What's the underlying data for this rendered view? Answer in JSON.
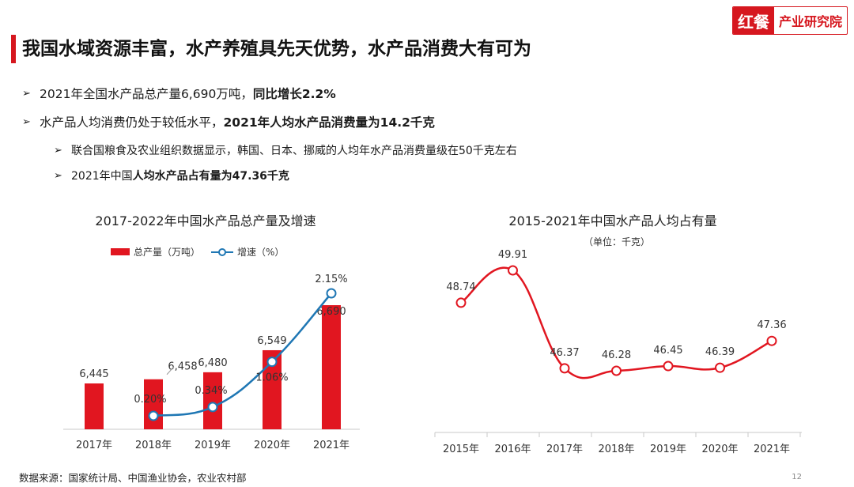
{
  "header": {
    "logo_mark": "红餐",
    "logo_text": "产业研究院",
    "title": "我国水域资源丰富，水产养殖具先天优势，水产品消费大有可为"
  },
  "bullets": [
    {
      "level": 1,
      "normal": "2021年全国水产品总产量6,690万吨，",
      "bold": "同比增长2.2%"
    },
    {
      "level": 1,
      "normal": "水产品人均消费仍处于较低水平，",
      "bold": "2021年人均水产品消费量为14.2千克"
    },
    {
      "level": 2,
      "normal": "联合国粮食及农业组织数据显示，韩国、日本、挪威的人均年水产品消费量级在50千克左右",
      "bold": ""
    },
    {
      "level": 2,
      "normal": "2021年中国",
      "bold": "人均水产品占有量为47.36千克"
    }
  ],
  "footer": {
    "source": "数据来源：国家统计局、中国渔业协会，农业农村部",
    "page": "12"
  },
  "colors": {
    "accent": "#d6171f",
    "bar": "#e11620",
    "line": "#1f77b4",
    "line2": "#e11620"
  },
  "chart_data": [
    {
      "type": "bar",
      "title": "2017-2022年中国水产品总产量及增速",
      "categories": [
        "2017年",
        "2018年",
        "2019年",
        "2020年",
        "2021年"
      ],
      "legend": {
        "placement": "top",
        "bar_label": "总产量（万吨）",
        "line_label": "增速（%）"
      },
      "series": [
        {
          "name": "总产量（万吨）",
          "type": "bar",
          "values": [
            6445,
            6458,
            6480,
            6549,
            6690
          ],
          "labels": [
            "6,445",
            "6,458",
            "6,480",
            "6,549",
            "6,690"
          ]
        },
        {
          "name": "增速（%）",
          "type": "line",
          "values": [
            null,
            0.2,
            0.34,
            1.06,
            2.15
          ],
          "labels": [
            "",
            "0.20%",
            "0.34%",
            "1.06%",
            "2.15%"
          ]
        }
      ],
      "grid": false
    },
    {
      "type": "line",
      "title": "2015-2021年中国水产品人均占有量",
      "subtitle": "（单位：千克）",
      "categories": [
        "2015年",
        "2016年",
        "2017年",
        "2018年",
        "2019年",
        "2020年",
        "2021年"
      ],
      "series": [
        {
          "values": [
            48.74,
            49.91,
            46.37,
            46.28,
            46.45,
            46.39,
            47.36
          ],
          "labels": [
            "48.74",
            "49.91",
            "46.37",
            "46.28",
            "46.45",
            "46.39",
            "47.36"
          ]
        }
      ],
      "grid": false
    }
  ]
}
